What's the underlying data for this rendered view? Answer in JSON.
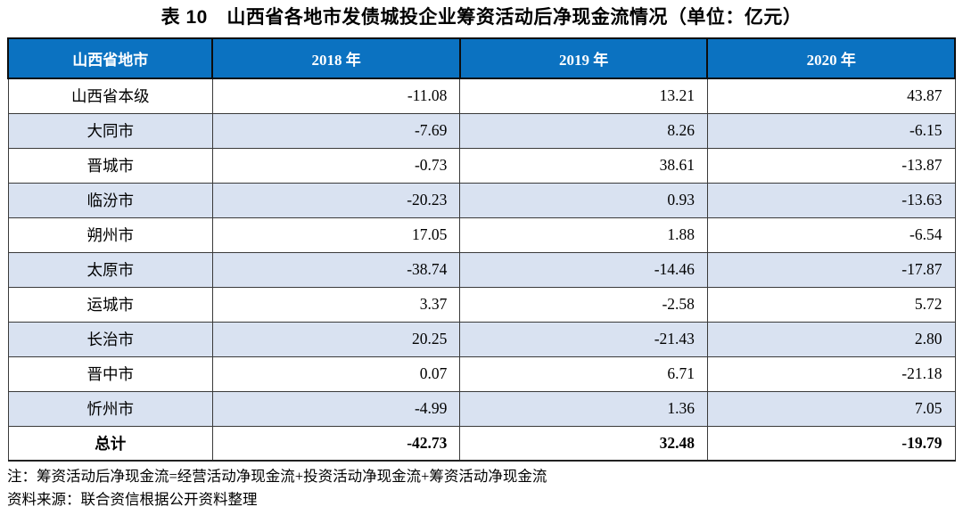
{
  "title": "表 10　山西省各地市发债城投企业筹资活动后净现金流情况（单位：亿元）",
  "table": {
    "columns": [
      "山西省地市",
      "2018 年",
      "2019 年",
      "2020 年"
    ],
    "rows": [
      {
        "city": "山西省本级",
        "values": [
          "-11.08",
          "13.21",
          "43.87"
        ]
      },
      {
        "city": "大同市",
        "values": [
          "-7.69",
          "8.26",
          "-6.15"
        ]
      },
      {
        "city": "晋城市",
        "values": [
          "-0.73",
          "38.61",
          "-13.87"
        ]
      },
      {
        "city": "临汾市",
        "values": [
          "-20.23",
          "0.93",
          "-13.63"
        ]
      },
      {
        "city": "朔州市",
        "values": [
          "17.05",
          "1.88",
          "-6.54"
        ]
      },
      {
        "city": "太原市",
        "values": [
          "-38.74",
          "-14.46",
          "-17.87"
        ]
      },
      {
        "city": "运城市",
        "values": [
          "3.37",
          "-2.58",
          "5.72"
        ]
      },
      {
        "city": "长治市",
        "values": [
          "20.25",
          "-21.43",
          "2.80"
        ]
      },
      {
        "city": "晋中市",
        "values": [
          "0.07",
          "6.71",
          "-21.18"
        ]
      },
      {
        "city": "忻州市",
        "values": [
          "-4.99",
          "1.36",
          "7.05"
        ]
      }
    ],
    "total_row": {
      "city": "总计",
      "values": [
        "-42.73",
        "32.48",
        "-19.79"
      ]
    }
  },
  "notes": {
    "note": "注：筹资活动后净现金流=经营活动净现金流+投资活动净现金流+筹资活动净现金流",
    "source": "资料来源：联合资信根据公开资料整理"
  },
  "colors": {
    "header_bg": "#0b72c1",
    "header_text": "#ffffff",
    "row_alt_bg": "#d9e2f1",
    "border": "#3a3a3a"
  }
}
